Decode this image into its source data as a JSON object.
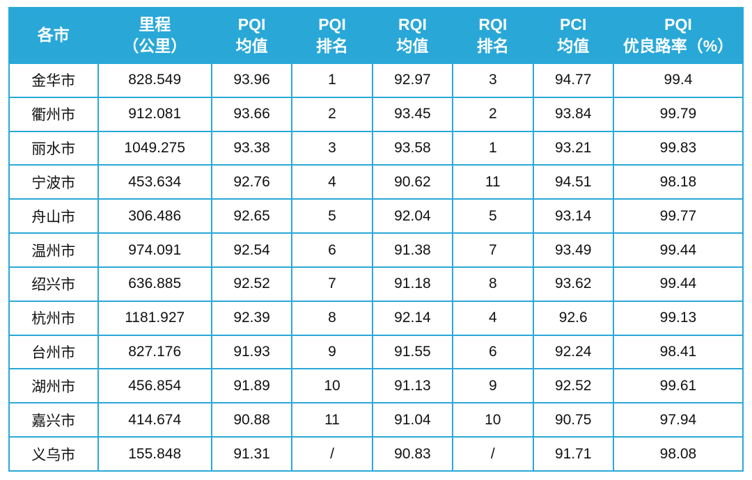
{
  "style": {
    "header_bg": "#29a8d8",
    "border_color": "#29a8d8",
    "header_text_color": "#ffffff",
    "body_text_color": "#111111"
  },
  "chart_data": {
    "type": "table",
    "title": "",
    "columns": [
      "各市",
      "里程\n（公里）",
      "PQI\n均值",
      "PQI\n排名",
      "RQI\n均值",
      "RQI\n排名",
      "PCI\n均值",
      "PQI\n优良路率（%）"
    ],
    "rows": [
      [
        "金华市",
        "828.549",
        "93.96",
        "1",
        "92.97",
        "3",
        "94.77",
        "99.4"
      ],
      [
        "衢州市",
        "912.081",
        "93.66",
        "2",
        "93.45",
        "2",
        "93.84",
        "99.79"
      ],
      [
        "丽水市",
        "1049.275",
        "93.38",
        "3",
        "93.58",
        "1",
        "93.21",
        "99.83"
      ],
      [
        "宁波市",
        "453.634",
        "92.76",
        "4",
        "90.62",
        "11",
        "94.51",
        "98.18"
      ],
      [
        "舟山市",
        "306.486",
        "92.65",
        "5",
        "92.04",
        "5",
        "93.14",
        "99.77"
      ],
      [
        "温州市",
        "974.091",
        "92.54",
        "6",
        "91.38",
        "7",
        "93.49",
        "99.44"
      ],
      [
        "绍兴市",
        "636.885",
        "92.52",
        "7",
        "91.18",
        "8",
        "93.62",
        "99.44"
      ],
      [
        "杭州市",
        "1181.927",
        "92.39",
        "8",
        "92.14",
        "4",
        "92.6",
        "99.13"
      ],
      [
        "台州市",
        "827.176",
        "91.93",
        "9",
        "91.55",
        "6",
        "92.24",
        "98.41"
      ],
      [
        "湖州市",
        "456.854",
        "91.89",
        "10",
        "91.13",
        "9",
        "92.52",
        "99.61"
      ],
      [
        "嘉兴市",
        "414.674",
        "90.88",
        "11",
        "91.04",
        "10",
        "90.75",
        "97.94"
      ],
      [
        "义乌市",
        "155.848",
        "91.31",
        "/",
        "90.83",
        "/",
        "91.71",
        "98.08"
      ]
    ]
  }
}
